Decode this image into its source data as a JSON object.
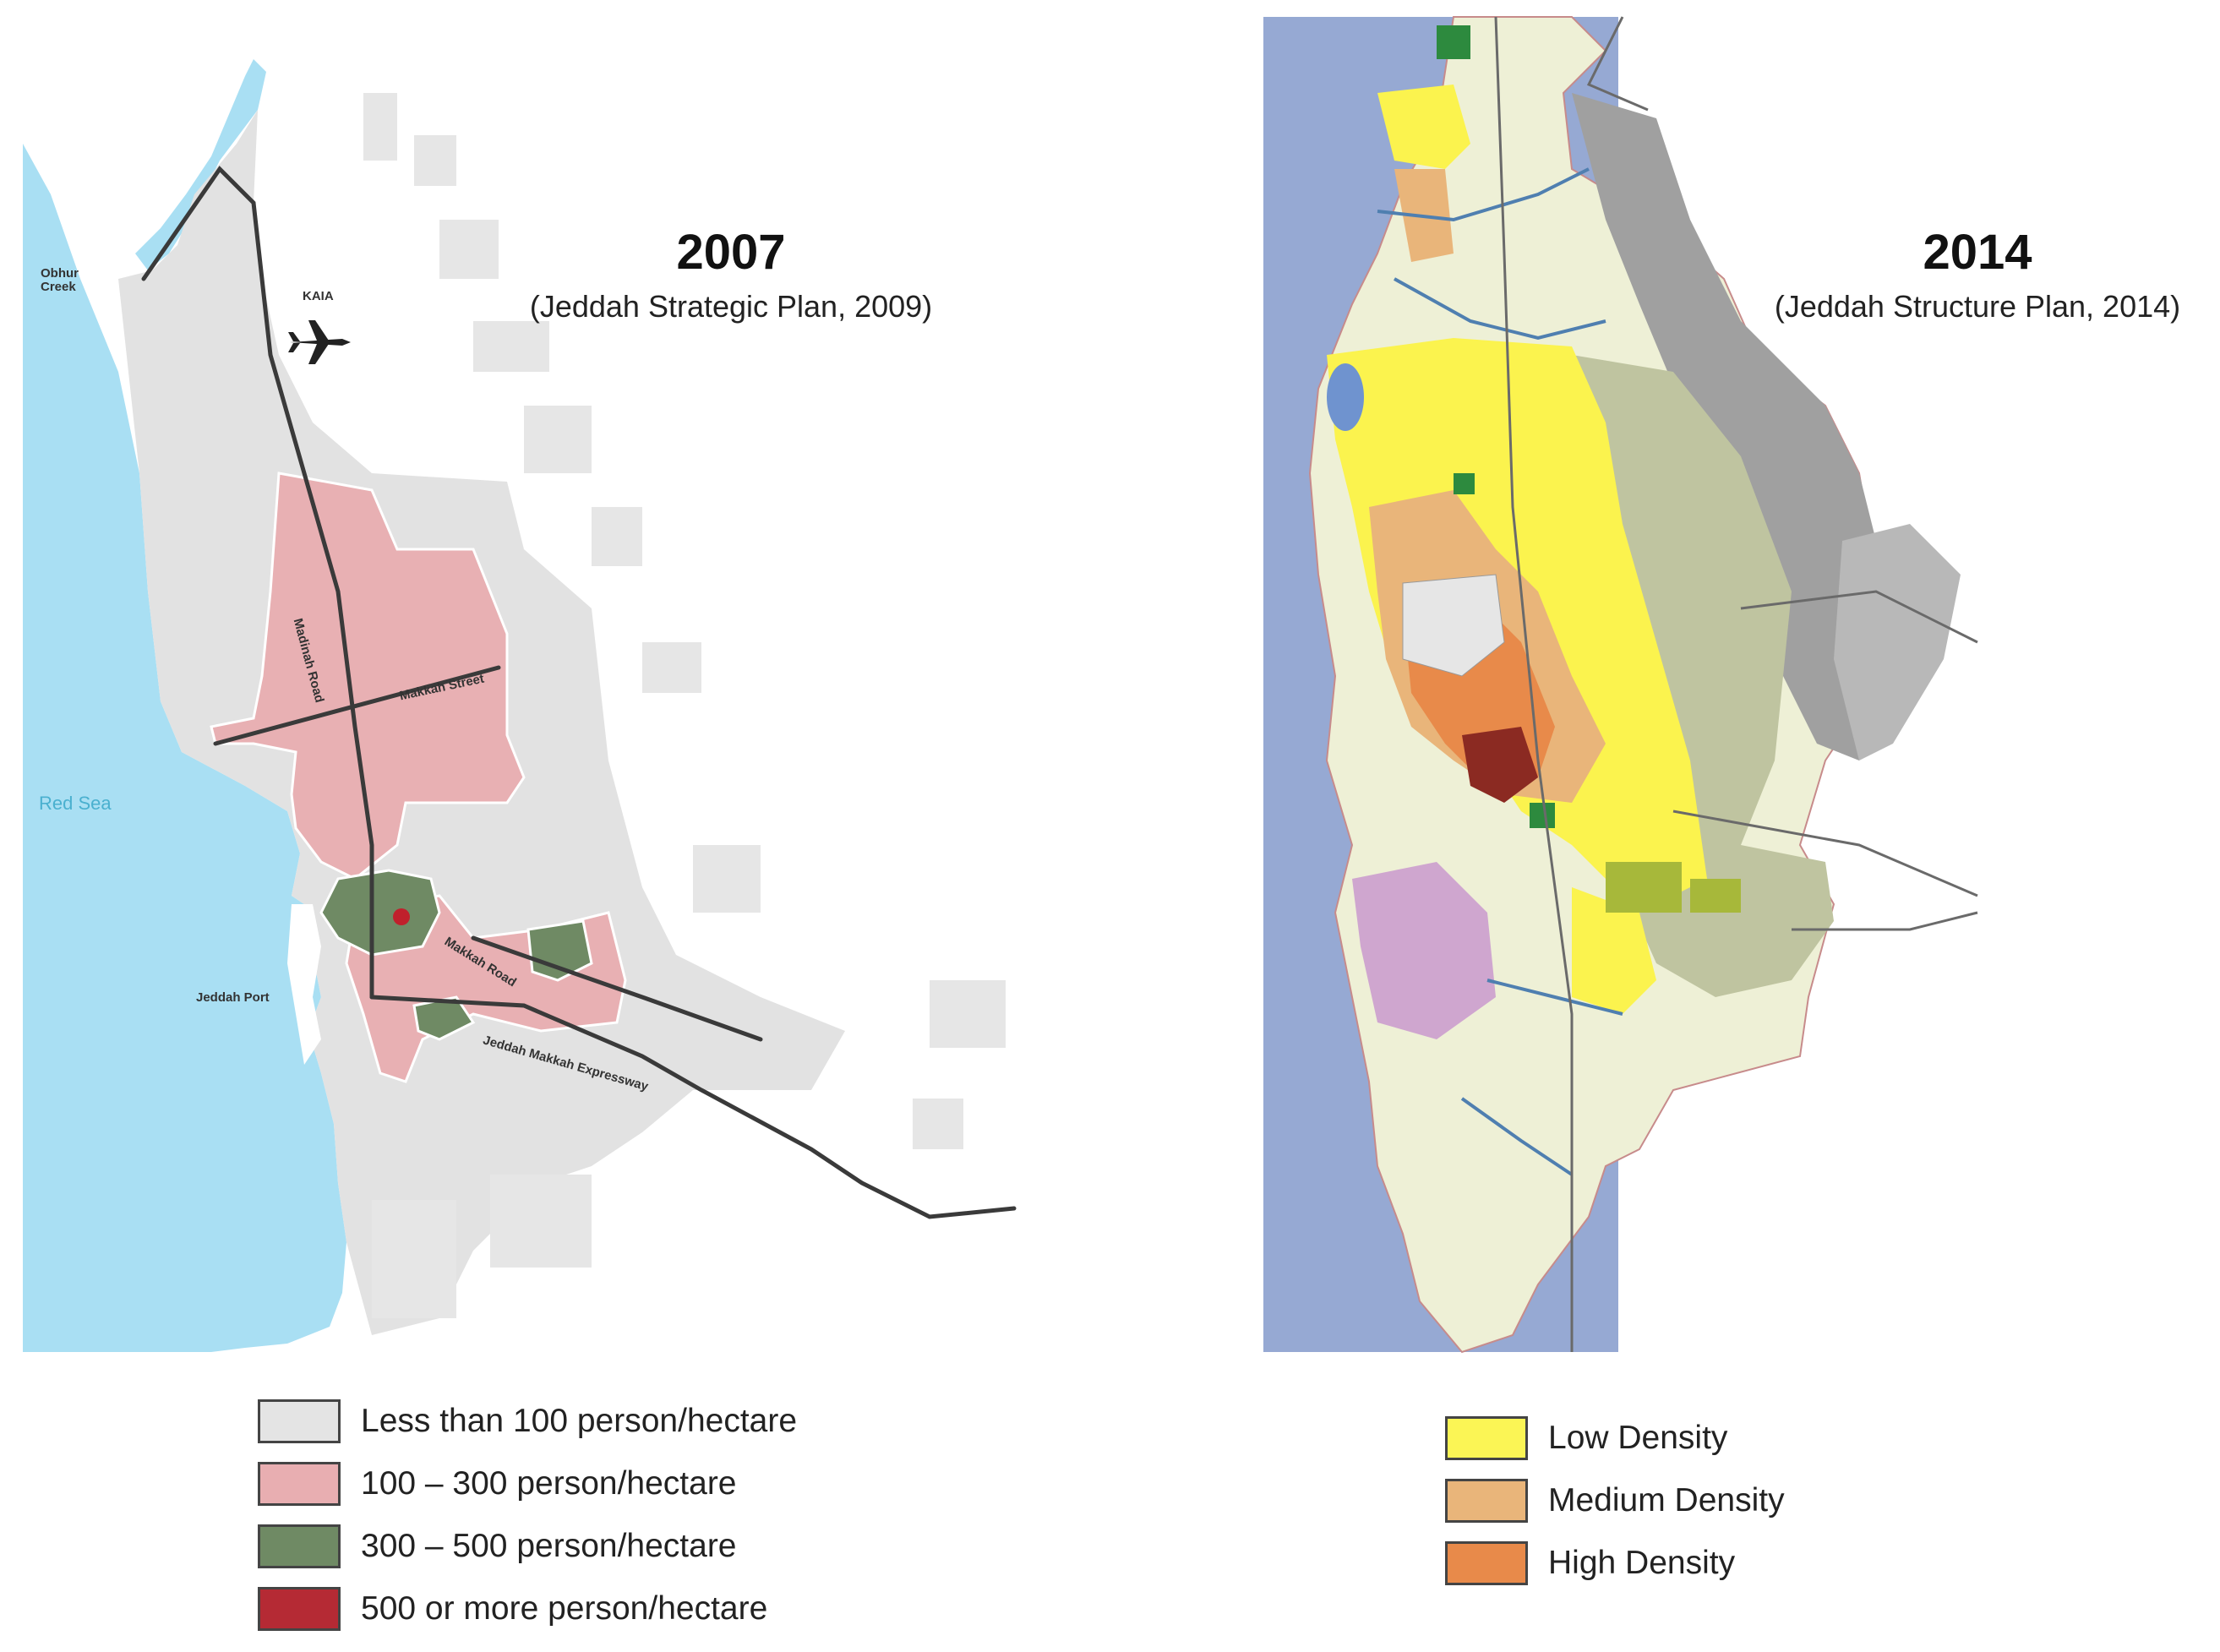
{
  "left_map": {
    "year": "2007",
    "source": "(Jeddah Strategic Plan, 2009)",
    "labels": {
      "obhur_creek": "Obhur\nCreek",
      "kaia": "KAIA",
      "red_sea": "Red Sea",
      "jeddah_port": "Jeddah Port",
      "madinah_road": "Madinah Road",
      "makkah_street": "Makkah Street",
      "makkah_road": "Makkah Road",
      "expressway": "Jeddah Makkah Expressway"
    },
    "legend": [
      {
        "label": "Less than 100 person/hectare",
        "color": "#e4e4e4"
      },
      {
        "label": "100 – 300 person/hectare",
        "color": "#e8aeb1"
      },
      {
        "label": "300 – 500 person/hectare",
        "color": "#6f8a64"
      },
      {
        "label": "500 or more person/hectare",
        "color": "#b52a34"
      }
    ],
    "icons": [
      "airplane-icon"
    ]
  },
  "right_map": {
    "year": "2014",
    "source": "(Jeddah Structure Plan, 2014)",
    "legend": [
      {
        "label": "Low Density",
        "color": "#fbf555"
      },
      {
        "label": "Medium Density",
        "color": "#e9b57a"
      },
      {
        "label": "High Density",
        "color": "#e88a4a"
      }
    ]
  },
  "colors": {
    "sea_left": "#a9dff3",
    "sea_right": "#96a9d3",
    "land_grey": "#e0e0e0",
    "terrain_grey": "#9a9a9a",
    "road": "#333333"
  }
}
